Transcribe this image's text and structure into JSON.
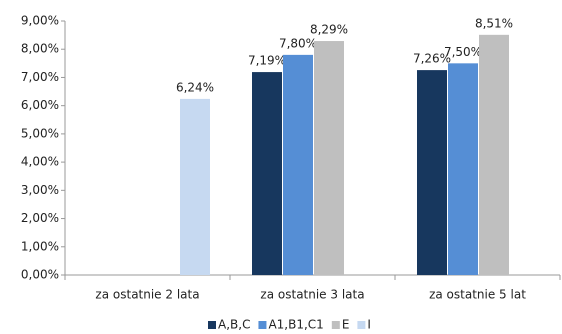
{
  "chart_data": {
    "type": "bar",
    "categories": [
      "za ostatnie 2 lata",
      "za ostatnie 3 lata",
      "za ostatnie 5 lat"
    ],
    "series": [
      {
        "name": "A,B,C",
        "color": "#17375e",
        "values": [
          null,
          7.19,
          7.26
        ],
        "value_labels": [
          null,
          "7,19%",
          "7,26%"
        ]
      },
      {
        "name": "A1,B1,C1",
        "color": "#558ed5",
        "values": [
          null,
          7.8,
          7.5
        ],
        "value_labels": [
          null,
          "7,80%",
          "7,50%"
        ]
      },
      {
        "name": "E",
        "color": "#bfbfbf",
        "values": [
          null,
          8.29,
          8.51
        ],
        "value_labels": [
          null,
          "8,29%",
          "8,51%"
        ]
      },
      {
        "name": "I",
        "color": "#c6d9f1",
        "values": [
          6.24,
          null,
          null
        ],
        "value_labels": [
          "6,24%",
          null,
          null
        ]
      }
    ],
    "ylim": [
      0,
      9
    ],
    "yticks": [
      {
        "value": 0,
        "label": "0,00%"
      },
      {
        "value": 1,
        "label": "1,00%"
      },
      {
        "value": 2,
        "label": "2,00%"
      },
      {
        "value": 3,
        "label": "3,00%"
      },
      {
        "value": 4,
        "label": "4,00%"
      },
      {
        "value": 5,
        "label": "5,00%"
      },
      {
        "value": 6,
        "label": "6,00%"
      },
      {
        "value": 7,
        "label": "7,00%"
      },
      {
        "value": 8,
        "label": "8,00%"
      },
      {
        "value": 9,
        "label": "9,00%"
      }
    ],
    "grid": false,
    "legend": "bottom"
  }
}
